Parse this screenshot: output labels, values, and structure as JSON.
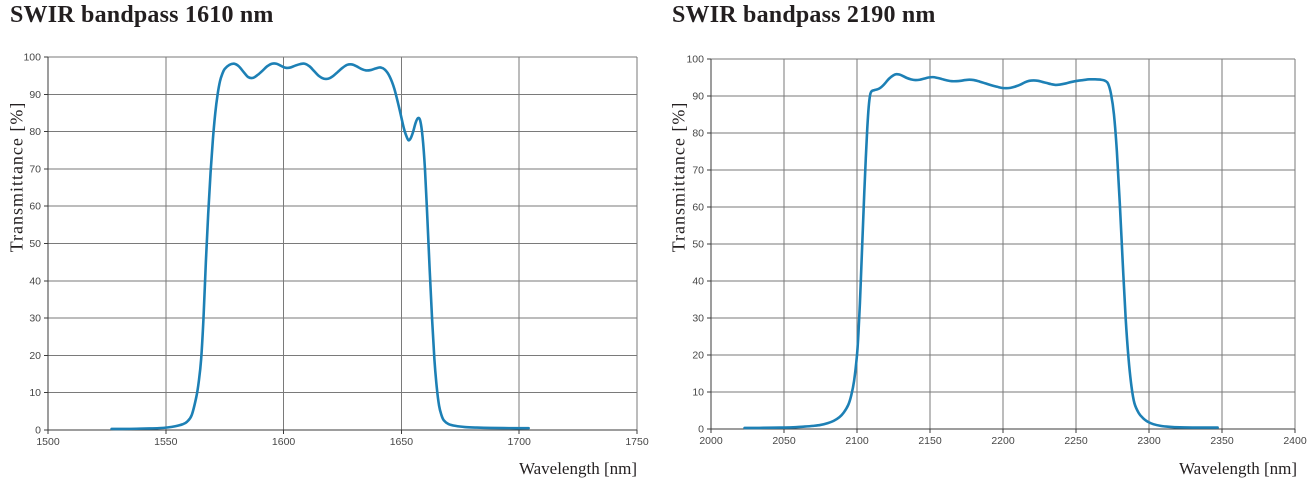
{
  "page": {
    "background": "#ffffff"
  },
  "chart_data": [
    {
      "type": "line",
      "title": "SWIR bandpass 1610 nm",
      "xlabel": "Wavelength [nm]",
      "ylabel": "Transmittance [%]",
      "xlim": [
        1500,
        1750
      ],
      "ylim": [
        0,
        100
      ],
      "x_ticks": [
        1500,
        1550,
        1600,
        1650,
        1700,
        1750
      ],
      "y_ticks": [
        0,
        10,
        20,
        30,
        40,
        50,
        60,
        70,
        80,
        90,
        100
      ],
      "grid": true,
      "legend": "none",
      "line_color": "#1d80b5",
      "series": [
        {
          "name": "transmittance",
          "points": [
            [
              1527,
              0.3
            ],
            [
              1534,
              0.3
            ],
            [
              1541,
              0.4
            ],
            [
              1547,
              0.5
            ],
            [
              1551,
              0.7
            ],
            [
              1554,
              1.0
            ],
            [
              1557,
              1.5
            ],
            [
              1559,
              2.2
            ],
            [
              1561,
              4
            ],
            [
              1563,
              9
            ],
            [
              1564,
              13
            ],
            [
              1565,
              19
            ],
            [
              1566,
              30
            ],
            [
              1567,
              45
            ],
            [
              1568,
              58
            ],
            [
              1569,
              69
            ],
            [
              1570,
              78
            ],
            [
              1571,
              85
            ],
            [
              1572,
              90
            ],
            [
              1573,
              93.5
            ],
            [
              1574,
              95.5
            ],
            [
              1575,
              96.8
            ],
            [
              1577,
              97.9
            ],
            [
              1579,
              98.2
            ],
            [
              1581,
              97.5
            ],
            [
              1583,
              96
            ],
            [
              1585,
              94.6
            ],
            [
              1587,
              94.4
            ],
            [
              1589,
              95.2
            ],
            [
              1591,
              96.3
            ],
            [
              1593,
              97.5
            ],
            [
              1595,
              98.2
            ],
            [
              1597,
              98.2
            ],
            [
              1599,
              97.6
            ],
            [
              1601,
              97.1
            ],
            [
              1603,
              97.2
            ],
            [
              1605,
              97.7
            ],
            [
              1607,
              98.1
            ],
            [
              1609,
              98.2
            ],
            [
              1611,
              97.5
            ],
            [
              1613,
              96.2
            ],
            [
              1615,
              94.9
            ],
            [
              1617,
              94.2
            ],
            [
              1619,
              94.2
            ],
            [
              1621,
              94.9
            ],
            [
              1623,
              96
            ],
            [
              1625,
              97.1
            ],
            [
              1627,
              97.9
            ],
            [
              1629,
              98
            ],
            [
              1631,
              97.5
            ],
            [
              1633,
              96.8
            ],
            [
              1635,
              96.4
            ],
            [
              1637,
              96.5
            ],
            [
              1639,
              96.9
            ],
            [
              1641,
              97.2
            ],
            [
              1643,
              96.6
            ],
            [
              1645,
              94.8
            ],
            [
              1647,
              91.5
            ],
            [
              1649,
              86.5
            ],
            [
              1651,
              81
            ],
            [
              1652,
              79
            ],
            [
              1653,
              77.7
            ],
            [
              1654,
              78.3
            ],
            [
              1655,
              80
            ],
            [
              1656,
              82.3
            ],
            [
              1657,
              83.6
            ],
            [
              1658,
              82.9
            ],
            [
              1659,
              78.5
            ],
            [
              1660,
              70
            ],
            [
              1661,
              57
            ],
            [
              1662,
              43
            ],
            [
              1663,
              30
            ],
            [
              1664,
              19
            ],
            [
              1665,
              11.5
            ],
            [
              1666,
              6.5
            ],
            [
              1667,
              4
            ],
            [
              1668,
              2.6
            ],
            [
              1670,
              1.6
            ],
            [
              1673,
              1.1
            ],
            [
              1677,
              0.8
            ],
            [
              1682,
              0.65
            ],
            [
              1688,
              0.55
            ],
            [
              1696,
              0.5
            ],
            [
              1704,
              0.5
            ]
          ]
        }
      ]
    },
    {
      "type": "line",
      "title": "SWIR bandpass 2190 nm",
      "xlabel": "Wavelength [nm]",
      "ylabel": "Transmittance [%]",
      "xlim": [
        2000,
        2400
      ],
      "ylim": [
        0,
        100
      ],
      "x_ticks": [
        2000,
        2050,
        2100,
        2150,
        2200,
        2250,
        2300,
        2350,
        2400
      ],
      "y_ticks": [
        0,
        10,
        20,
        30,
        40,
        50,
        60,
        70,
        80,
        90,
        100
      ],
      "grid": true,
      "legend": "none",
      "line_color": "#1d80b5",
      "series": [
        {
          "name": "transmittance",
          "points": [
            [
              2023,
              0.3
            ],
            [
              2033,
              0.3
            ],
            [
              2042,
              0.35
            ],
            [
              2050,
              0.4
            ],
            [
              2058,
              0.5
            ],
            [
              2064,
              0.65
            ],
            [
              2070,
              0.85
            ],
            [
              2075,
              1.1
            ],
            [
              2080,
              1.6
            ],
            [
              2084,
              2.2
            ],
            [
              2088,
              3.2
            ],
            [
              2091,
              4.5
            ],
            [
              2094,
              6.5
            ],
            [
              2096,
              9
            ],
            [
              2098,
              13
            ],
            [
              2100,
              20
            ],
            [
              2101,
              26
            ],
            [
              2102,
              34
            ],
            [
              2103,
              44
            ],
            [
              2104,
              54
            ],
            [
              2105,
              64
            ],
            [
              2106,
              73
            ],
            [
              2107,
              81
            ],
            [
              2108,
              87
            ],
            [
              2109,
              90.3
            ],
            [
              2110,
              91.3
            ],
            [
              2112,
              91.6
            ],
            [
              2114,
              91.8
            ],
            [
              2116,
              92.2
            ],
            [
              2118,
              92.9
            ],
            [
              2120,
              93.8
            ],
            [
              2122,
              94.7
            ],
            [
              2125,
              95.6
            ],
            [
              2127,
              95.9
            ],
            [
              2129,
              95.8
            ],
            [
              2131,
              95.5
            ],
            [
              2134,
              94.9
            ],
            [
              2137,
              94.5
            ],
            [
              2140,
              94.3
            ],
            [
              2143,
              94.4
            ],
            [
              2146,
              94.7
            ],
            [
              2149,
              95.0
            ],
            [
              2152,
              95.1
            ],
            [
              2155,
              94.9
            ],
            [
              2158,
              94.6
            ],
            [
              2162,
              94.2
            ],
            [
              2165,
              94.0
            ],
            [
              2168,
              94.0
            ],
            [
              2171,
              94.1
            ],
            [
              2174,
              94.3
            ],
            [
              2177,
              94.4
            ],
            [
              2180,
              94.3
            ],
            [
              2184,
              93.9
            ],
            [
              2188,
              93.4
            ],
            [
              2192,
              92.9
            ],
            [
              2196,
              92.5
            ],
            [
              2199,
              92.2
            ],
            [
              2202,
              92.1
            ],
            [
              2205,
              92.2
            ],
            [
              2208,
              92.5
            ],
            [
              2212,
              93.1
            ],
            [
              2215,
              93.7
            ],
            [
              2218,
              94.1
            ],
            [
              2221,
              94.2
            ],
            [
              2224,
              94.1
            ],
            [
              2227,
              93.8
            ],
            [
              2230,
              93.5
            ],
            [
              2233,
              93.2
            ],
            [
              2236,
              93.0
            ],
            [
              2239,
              93.1
            ],
            [
              2243,
              93.4
            ],
            [
              2247,
              93.8
            ],
            [
              2251,
              94.1
            ],
            [
              2255,
              94.3
            ],
            [
              2259,
              94.5
            ],
            [
              2263,
              94.5
            ],
            [
              2267,
              94.4
            ],
            [
              2270,
              94.1
            ],
            [
              2272,
              93.3
            ],
            [
              2274,
              90.5
            ],
            [
              2276,
              85
            ],
            [
              2278,
              75
            ],
            [
              2280,
              61
            ],
            [
              2282,
              45
            ],
            [
              2284,
              30
            ],
            [
              2286,
              19
            ],
            [
              2288,
              11.5
            ],
            [
              2290,
              7
            ],
            [
              2293,
              4.3
            ],
            [
              2296,
              2.9
            ],
            [
              2299,
              2.0
            ],
            [
              2303,
              1.3
            ],
            [
              2308,
              0.85
            ],
            [
              2314,
              0.6
            ],
            [
              2321,
              0.45
            ],
            [
              2330,
              0.4
            ],
            [
              2339,
              0.4
            ],
            [
              2347,
              0.4
            ]
          ]
        }
      ]
    }
  ]
}
